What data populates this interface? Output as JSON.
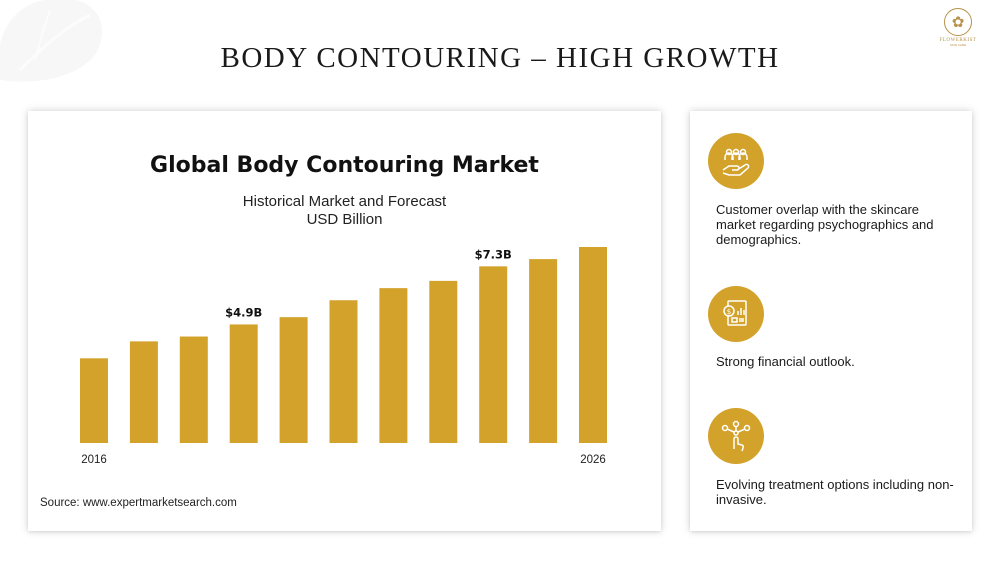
{
  "page": {
    "title": "BODY CONTOURING – HIGH GROWTH",
    "accent_color": "#d3a22b"
  },
  "logo": {
    "name": "FLOWERKIST",
    "sub": "SKIN CARE",
    "icon": "flower-logo-icon"
  },
  "chart_card": {
    "title": "Global Body Contouring Market",
    "subtitle_line1": "Historical Market and Forecast",
    "subtitle_line2": "USD Billion",
    "source": "Source: www.expertmarketsearch.com"
  },
  "chart_data": {
    "type": "bar",
    "title": "Global Body Contouring Market",
    "subtitle": "Historical Market and Forecast USD Billion",
    "categories": [
      "2016",
      "2017",
      "2018",
      "2019",
      "2020",
      "2021",
      "2022",
      "2023",
      "2024",
      "2025",
      "2026"
    ],
    "values": [
      3.5,
      4.2,
      4.4,
      4.9,
      5.2,
      5.9,
      6.4,
      6.7,
      7.3,
      7.6,
      8.1
    ],
    "shown_tick_labels": [
      "2016",
      "2026"
    ],
    "data_labels": [
      {
        "category": "2019",
        "label": "$4.9B"
      },
      {
        "category": "2024",
        "label": "$7.3B"
      }
    ],
    "color": "#d3a22b",
    "grid": false,
    "legend": "none"
  },
  "info_items": [
    {
      "icon": "customers-hand-icon",
      "text": "Customer overlap with the skincare market regarding psychographics and demographics."
    },
    {
      "icon": "financial-report-icon",
      "text": "Strong financial outlook."
    },
    {
      "icon": "touch-network-icon",
      "text": "Evolving treatment options including non-invasive."
    }
  ]
}
